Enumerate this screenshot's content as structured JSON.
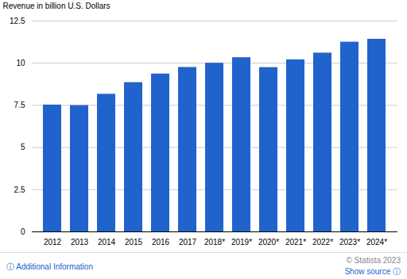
{
  "chart_data": {
    "type": "bar",
    "categories": [
      "2012",
      "2013",
      "2014",
      "2015",
      "2016",
      "2017",
      "2018*",
      "2019*",
      "2020*",
      "2021*",
      "2022*",
      "2023*",
      "2024*"
    ],
    "values": [
      7.52,
      7.49,
      8.16,
      8.85,
      9.36,
      9.75,
      10.0,
      10.33,
      9.74,
      10.2,
      10.6,
      11.25,
      11.42
    ],
    "color": "#2163cc",
    "ylabel": "Revenue in billion U.S. Dollars",
    "ylim": [
      0,
      12.5
    ],
    "yticks": [
      0,
      2.5,
      5,
      7.5,
      10,
      12.5
    ],
    "grid": true,
    "annotations": [
      "ⓘ  Additional Information",
      "© Statista 2023",
      "Show source ⓘ"
    ]
  }
}
